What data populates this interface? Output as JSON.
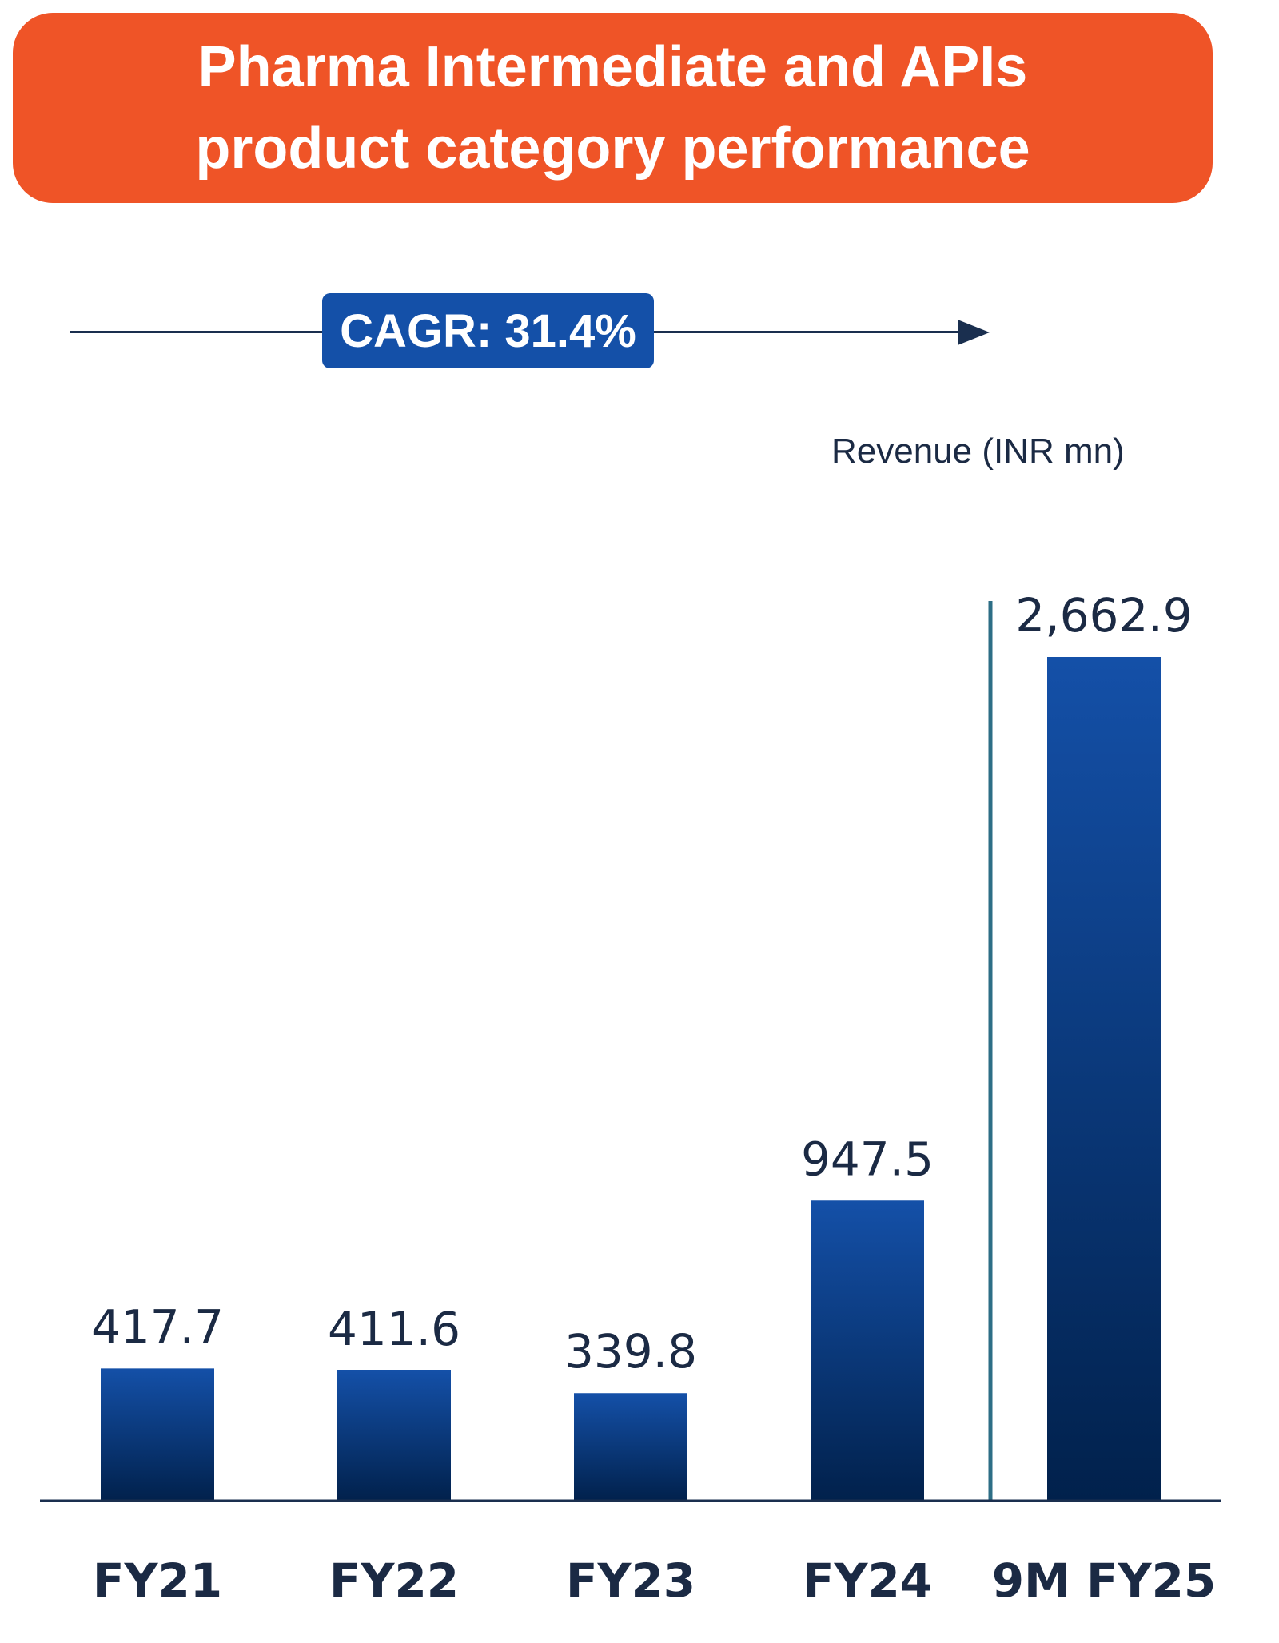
{
  "header": {
    "line1": "Pharma Intermediate and APIs",
    "line2": "product category  performance",
    "bg_color": "#ef5427"
  },
  "cagr": {
    "label": "CAGR: 31.4%",
    "bg_color": "#1450a8"
  },
  "unit_label": "Revenue (INR mn)",
  "colors": {
    "bar_top": "#1450a8",
    "bar_bottom": "#01214c",
    "axis": "#1a2f4f",
    "separator": "#2d6e86"
  },
  "chart_data": {
    "type": "bar",
    "title": "Pharma Intermediate and APIs product category  performance",
    "ylabel": "Revenue (INR mn)",
    "categories": [
      "FY21",
      "FY22",
      "FY23",
      "FY24",
      "9M FY25"
    ],
    "values": [
      417.7,
      411.6,
      339.8,
      947.5,
      2662.9
    ],
    "value_labels": [
      "417.7",
      "411.6",
      "339.8",
      "947.5",
      "2,662.9"
    ],
    "ylim": [
      0,
      2662.9
    ],
    "grid": false,
    "legend": "none"
  }
}
